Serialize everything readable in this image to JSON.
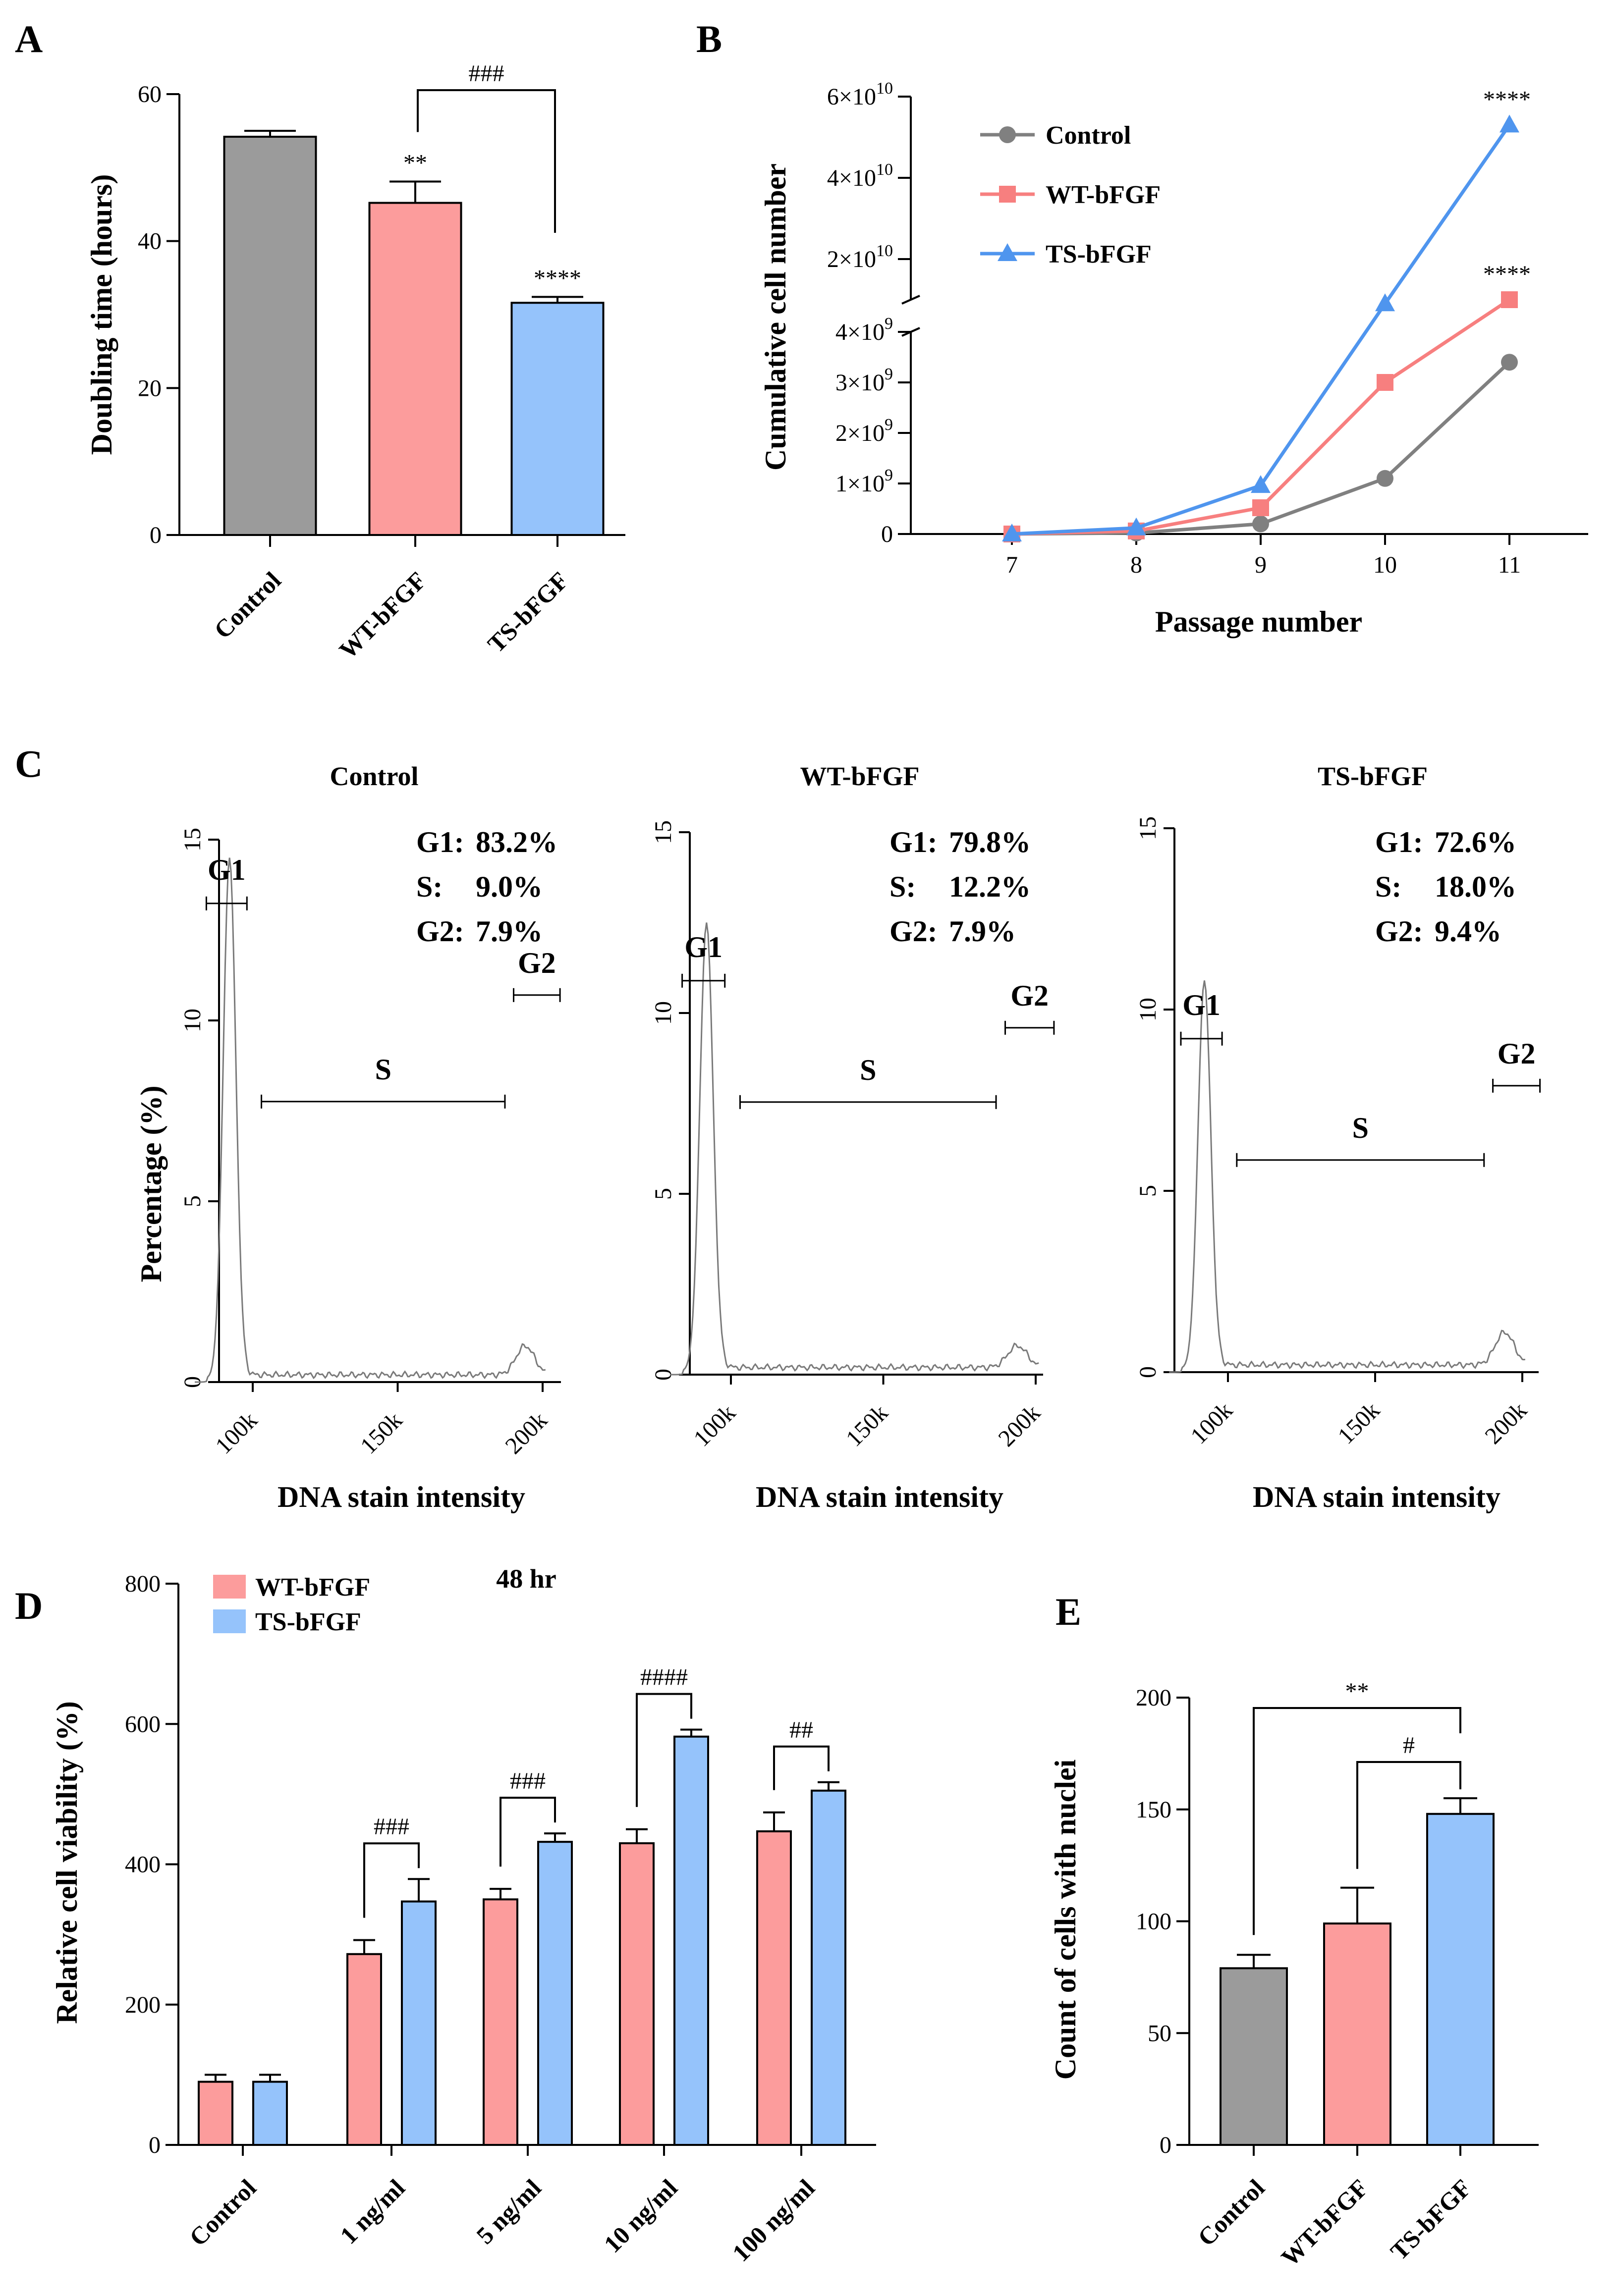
{
  "chart_data": [
    {
      "panel": "A",
      "type": "bar",
      "ylabel": "Doubling time (hours)",
      "ylim": [
        0,
        60
      ],
      "yticks": [
        0,
        20,
        40,
        60
      ],
      "categories": [
        "Control",
        "WT-bFGF",
        "TS-bFGF"
      ],
      "values": [
        54.2,
        45.2,
        31.6
      ],
      "errors": [
        0.8,
        2.9,
        0.8
      ],
      "colors": [
        "#9b9b9b",
        "#fc9c9c",
        "#95c3fb"
      ],
      "annotations": [
        "",
        "**",
        "****"
      ],
      "brackets": [
        {
          "from": "WT-bFGF",
          "to": "TS-bFGF",
          "label": "###"
        }
      ]
    },
    {
      "panel": "B",
      "type": "line",
      "xlabel": "Passage number",
      "ylabel": "Cumulative cell number",
      "x": [
        7,
        8,
        9,
        10,
        11
      ],
      "lower_yticks": [
        {
          "value": 0,
          "label": "0"
        },
        {
          "value": 1000000000,
          "label": "1×10",
          "exp": "9"
        },
        {
          "value": 2000000000,
          "label": "2×10",
          "exp": "9"
        },
        {
          "value": 3000000000,
          "label": "3×10",
          "exp": "9"
        },
        {
          "value": 4000000000,
          "label": "4×10",
          "exp": "9"
        }
      ],
      "upper_yticks": [
        {
          "value": 20000000000,
          "label": "2×10",
          "exp": "10"
        },
        {
          "value": 40000000000,
          "label": "4×10",
          "exp": "10"
        },
        {
          "value": 60000000000,
          "label": "6×10",
          "exp": "10"
        }
      ],
      "series": [
        {
          "name": "Control",
          "color": "#808080",
          "marker": "circle",
          "values": [
            0,
            20000000,
            200000000,
            1100000000,
            3400000000
          ]
        },
        {
          "name": "WT-bFGF",
          "color": "#f77f7f",
          "marker": "square",
          "values": [
            0,
            60000000,
            520000000,
            3000000000,
            10000000000
          ]
        },
        {
          "name": "TS-bFGF",
          "color": "#4f95ee",
          "marker": "triangle",
          "values": [
            0,
            120000000,
            960000000,
            9000000000,
            53000000000
          ]
        }
      ],
      "annotations": [
        {
          "series": "TS-bFGF",
          "label": "****"
        },
        {
          "series": "WT-bFGF",
          "label": "****"
        }
      ]
    },
    {
      "panel": "C",
      "type": "line",
      "xlabel": "DNA stain intensity",
      "ylabel": "Percentage (%)",
      "yticks": [
        0,
        5,
        10,
        15
      ],
      "xticks": [
        "100k",
        "150k",
        "200k"
      ],
      "histograms": [
        {
          "title": "Control",
          "g1_peak": 14.4,
          "g2_peak": 0.8,
          "phases": [
            {
              "label": "G1:",
              "value": "83.2%"
            },
            {
              "label": "S:",
              "value": "9.0%"
            },
            {
              "label": "G2:",
              "value": "7.9%"
            }
          ]
        },
        {
          "title": "WT-bFGF",
          "g1_peak": 12.4,
          "g2_peak": 0.6,
          "phases": [
            {
              "label": "G1:",
              "value": "79.8%"
            },
            {
              "label": "S:",
              "value": "12.2%"
            },
            {
              "label": "G2:",
              "value": "7.9%"
            }
          ]
        },
        {
          "title": "TS-bFGF",
          "g1_peak": 10.7,
          "g2_peak": 0.9,
          "phases": [
            {
              "label": "G1:",
              "value": "72.6%"
            },
            {
              "label": "S:",
              "value": "18.0%"
            },
            {
              "label": "G2:",
              "value": "9.4%"
            }
          ]
        }
      ],
      "gates": [
        "G1",
        "S",
        "G2"
      ]
    },
    {
      "panel": "D",
      "type": "bar",
      "title": "48 hr",
      "ylabel": "Relative cell viability (%)",
      "ylim": [
        0,
        800
      ],
      "yticks": [
        0,
        200,
        400,
        600,
        800
      ],
      "categories": [
        "Control",
        "1 ng/ml",
        "5 ng/ml",
        "10 ng/ml",
        "100 ng/ml"
      ],
      "series": [
        {
          "name": "WT-bFGF",
          "color": "#fc9c9c",
          "values": [
            90,
            272,
            350,
            430,
            447
          ],
          "errors": [
            10,
            20,
            15,
            20,
            27
          ]
        },
        {
          "name": "TS-bFGF",
          "color": "#95c3fb",
          "values": [
            90,
            347,
            432,
            582,
            505
          ],
          "errors": [
            10,
            32,
            12,
            10,
            12
          ]
        }
      ],
      "annotations": [
        "",
        "###",
        "###",
        "####",
        "##"
      ]
    },
    {
      "panel": "E",
      "type": "bar",
      "ylabel": "Count of cells with nuclei",
      "ylim": [
        0,
        200
      ],
      "yticks": [
        0,
        50,
        100,
        150,
        200
      ],
      "categories": [
        "Control",
        "WT-bFGF",
        "TS-bFGF"
      ],
      "values": [
        79,
        99,
        148
      ],
      "errors": [
        6,
        16,
        7
      ],
      "colors": [
        "#9b9b9b",
        "#fc9c9c",
        "#95c3fb"
      ],
      "brackets": [
        {
          "from": "Control",
          "to": "TS-bFGF",
          "label": "**"
        },
        {
          "from": "WT-bFGF",
          "to": "TS-bFGF",
          "label": "#"
        }
      ]
    }
  ]
}
